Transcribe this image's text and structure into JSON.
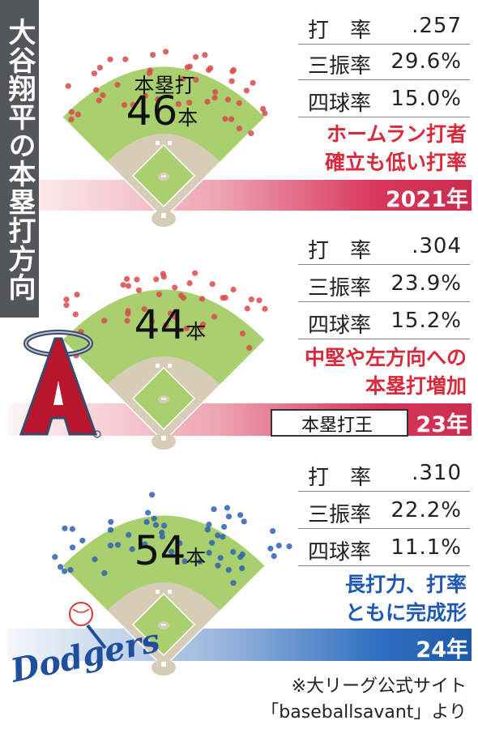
{
  "title": "大谷翔平の本塁打方向",
  "colors": {
    "red_dot": "#d84a4a",
    "blue_dot": "#2e62b0",
    "grass": "#a9cf6e",
    "infield_dirt": "#d7ccb6",
    "red_accent": "#d92a3b",
    "blue_accent": "#1f58b4"
  },
  "icons": {
    "angels_logo": "angels-logo",
    "dodgers_logo": "dodgers-logo",
    "crown": "crown-icon"
  },
  "seasons": [
    {
      "year": "2021年",
      "hr_label": "本塁打",
      "hr_count": "46",
      "hr_unit": "本",
      "stats": [
        {
          "label": "打　率",
          "value": ".257"
        },
        {
          "label": "三振率",
          "value": "29.6%"
        },
        {
          "label": "四球率",
          "value": "15.0%"
        }
      ],
      "note": [
        "ホームラン打者",
        "確立も低い打率"
      ]
    },
    {
      "year": "23年",
      "hr_label": "",
      "hr_count": "44",
      "hr_unit": "本",
      "badge": "本塁打王",
      "stats": [
        {
          "label": "打　率",
          "value": ".304"
        },
        {
          "label": "三振率",
          "value": "23.9%"
        },
        {
          "label": "四球率",
          "value": "15.2%"
        }
      ],
      "note": [
        "中堅や左方向への",
        "本塁打増加"
      ]
    },
    {
      "year": "24年",
      "hr_label": "",
      "hr_count": "54",
      "hr_unit": "本",
      "stats": [
        {
          "label": "打　率",
          "value": ".310"
        },
        {
          "label": "三振率",
          "value": "22.2%"
        },
        {
          "label": "四球率",
          "value": "11.1%"
        }
      ],
      "note": [
        "長打力、打率",
        "ともに完成形"
      ]
    }
  ],
  "source": [
    "※大リーグ公式サイト",
    "「baseballsavant」より"
  ],
  "chart_data": {
    "type": "scatter",
    "title": "大谷翔平の本塁打方向",
    "series": [
      {
        "name": "2021年",
        "count": 46,
        "batting_avg": ".257",
        "strikeout_rate": "29.6%",
        "walk_rate": "15.0%"
      },
      {
        "name": "23年",
        "count": 44,
        "batting_avg": ".304",
        "strikeout_rate": "23.9%",
        "walk_rate": "15.2%"
      },
      {
        "name": "24年",
        "count": 54,
        "batting_avg": ".310",
        "strikeout_rate": "22.2%",
        "walk_rate": "11.1%"
      }
    ]
  }
}
